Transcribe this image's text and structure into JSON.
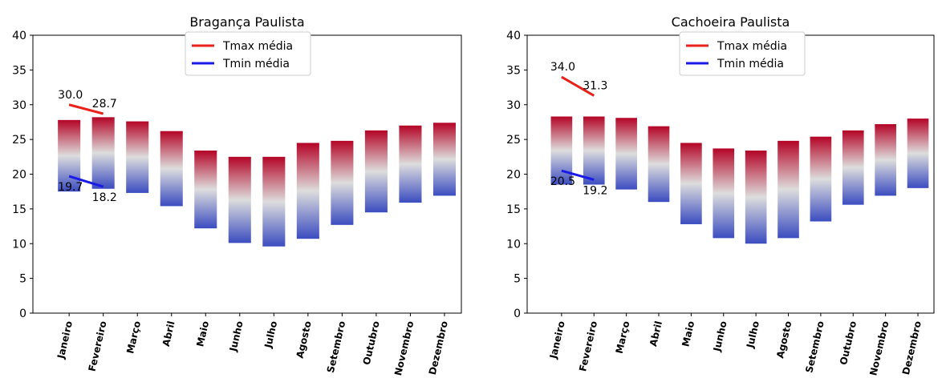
{
  "colors": {
    "tmax_line": "#e8221b",
    "tmin_line": "#1a1ae6",
    "gradient_top": "#b40426",
    "gradient_mid": "#dddddd",
    "gradient_bottom": "#3b4cc0"
  },
  "chart_data": [
    {
      "type": "bar",
      "title": "Bragança Paulista",
      "categories": [
        "Janeiro",
        "Fevereiro",
        "Março",
        "Abril",
        "Maio",
        "Junho",
        "Julho",
        "Agosto",
        "Setembro",
        "Outubro",
        "Novembro",
        "Dezembro"
      ],
      "bar_top": [
        27.8,
        28.2,
        27.6,
        26.2,
        23.4,
        22.5,
        22.5,
        24.5,
        24.8,
        26.3,
        27.0,
        27.4
      ],
      "bar_bottom": [
        17.5,
        17.9,
        17.3,
        15.4,
        12.2,
        10.1,
        9.6,
        10.7,
        12.7,
        14.5,
        15.9,
        16.9
      ],
      "series": [
        {
          "name": "Tmax média",
          "x": [
            "Janeiro",
            "Fevereiro"
          ],
          "values": [
            30.0,
            28.7
          ],
          "labels": [
            "30.0",
            "28.7"
          ]
        },
        {
          "name": "Tmin média",
          "x": [
            "Janeiro",
            "Fevereiro"
          ],
          "values": [
            19.7,
            18.2
          ],
          "labels": [
            "19.7",
            "18.2"
          ]
        }
      ],
      "ylim": [
        0,
        40
      ],
      "yticks": [
        "0",
        "5",
        "10",
        "15",
        "20",
        "25",
        "30",
        "35",
        "40"
      ],
      "legend": "top-center",
      "grid": false
    },
    {
      "type": "bar",
      "title": "Cachoeira Paulista",
      "categories": [
        "Janeiro",
        "Fevereiro",
        "Março",
        "Abril",
        "Maio",
        "Junho",
        "Julho",
        "Agosto",
        "Setembro",
        "Outubro",
        "Novembro",
        "Dezembro"
      ],
      "bar_top": [
        28.3,
        28.3,
        28.1,
        26.9,
        24.5,
        23.7,
        23.4,
        24.8,
        25.4,
        26.3,
        27.2,
        28.0
      ],
      "bar_bottom": [
        18.5,
        18.5,
        17.8,
        16.0,
        12.8,
        10.8,
        10.0,
        10.8,
        13.2,
        15.6,
        16.9,
        18.0
      ],
      "series": [
        {
          "name": "Tmax média",
          "x": [
            "Janeiro",
            "Fevereiro"
          ],
          "values": [
            34.0,
            31.3
          ],
          "labels": [
            "34.0",
            "31.3"
          ]
        },
        {
          "name": "Tmin média",
          "x": [
            "Janeiro",
            "Fevereiro"
          ],
          "values": [
            20.5,
            19.2
          ],
          "labels": [
            "20.5",
            "19.2"
          ]
        }
      ],
      "ylim": [
        0,
        40
      ],
      "yticks": [
        "0",
        "5",
        "10",
        "15",
        "20",
        "25",
        "30",
        "35",
        "40"
      ],
      "legend": "top-center",
      "grid": false
    }
  ]
}
